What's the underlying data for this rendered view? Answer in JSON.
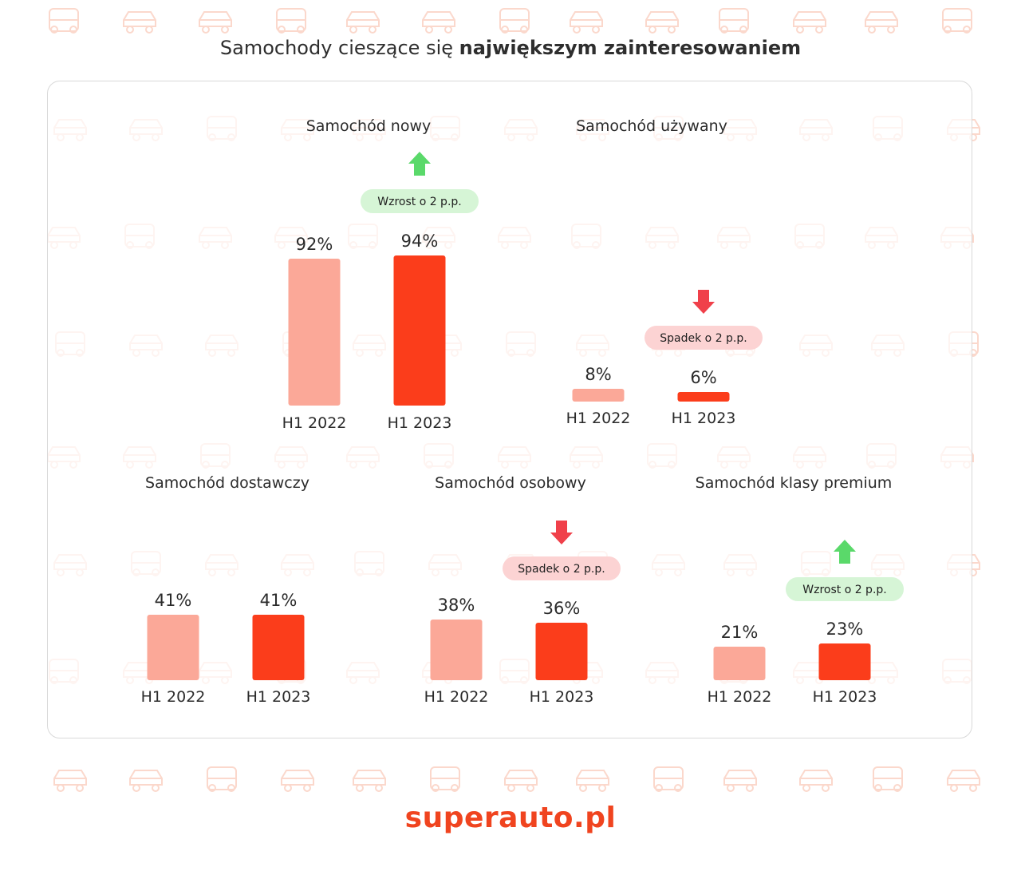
{
  "header": {
    "title_prefix": "Samochody cieszące się",
    "title_bold": "największym zainteresowaniem"
  },
  "colors": {
    "h1_2022": "#fba898",
    "h1_2023": "#fb3d1b",
    "increase_badge": "#d6f5d6",
    "increase_arrow": "#5ad96a",
    "decrease_badge": "#fcd3d3",
    "decrease_arrow": "#f0404a",
    "logo": "#f0441f"
  },
  "chart_data": [
    {
      "type": "bar",
      "title": "Samochód nowy",
      "categories": [
        "H1 2022",
        "H1 2023"
      ],
      "values": [
        92,
        94
      ],
      "value_labels": [
        "92%",
        "94%"
      ],
      "change": {
        "direction": "up",
        "label": "Wzrost o 2 p.p."
      }
    },
    {
      "type": "bar",
      "title": "Samochód używany",
      "categories": [
        "H1 2022",
        "H1 2023"
      ],
      "values": [
        8,
        6
      ],
      "value_labels": [
        "8%",
        "6%"
      ],
      "change": {
        "direction": "down",
        "label": "Spadek o 2 p.p."
      }
    },
    {
      "type": "bar",
      "title": "Samochód dostawczy",
      "categories": [
        "H1 2022",
        "H1 2023"
      ],
      "values": [
        41,
        41
      ],
      "value_labels": [
        "41%",
        "41%"
      ],
      "change": null
    },
    {
      "type": "bar",
      "title": "Samochód osobowy",
      "categories": [
        "H1 2022",
        "H1 2023"
      ],
      "values": [
        38,
        36
      ],
      "value_labels": [
        "38%",
        "36%"
      ],
      "change": {
        "direction": "down",
        "label": "Spadek o 2 p.p."
      }
    },
    {
      "type": "bar",
      "title": "Samochód klasy premium",
      "categories": [
        "H1 2022",
        "H1 2023"
      ],
      "values": [
        21,
        23
      ],
      "value_labels": [
        "21%",
        "23%"
      ],
      "change": {
        "direction": "up",
        "label": "Wzrost o 2 p.p."
      }
    }
  ],
  "footer": {
    "logo_text": "superauto.pl"
  }
}
